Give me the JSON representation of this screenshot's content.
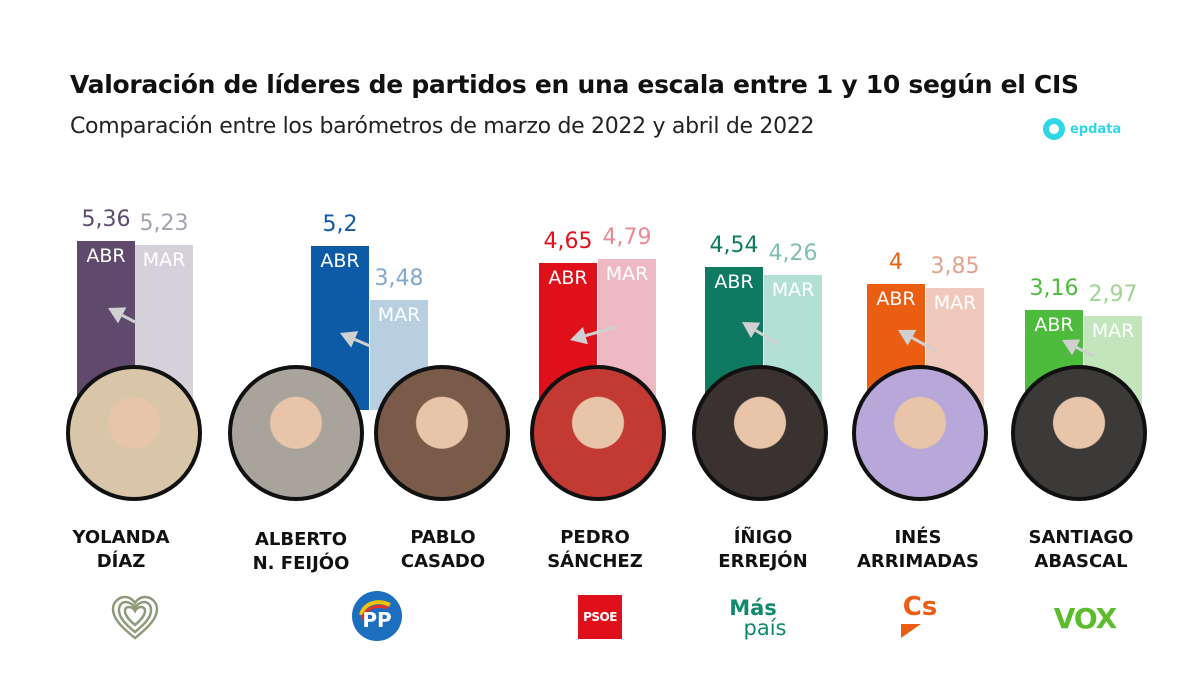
{
  "header": {
    "title": "Valoración de líderes de partidos en una escala entre 1 y 10 según el CIS",
    "subtitle": "Comparación entre los barómetros de marzo de 2022 y abril de 2022",
    "brand": "epdata"
  },
  "chart_data": {
    "type": "bar",
    "title": "Valoración de líderes de partidos en una escala entre 1 y 10 según el CIS",
    "subtitle": "Comparación entre los barómetros de marzo de 2022 y abril de 2022",
    "xlabel": "",
    "ylabel": "",
    "ylim": [
      0,
      10
    ],
    "grid": false,
    "series_labels": {
      "abr": "ABR",
      "mar": "MAR"
    },
    "leaders": [
      {
        "name_line1": "YOLANDA",
        "name_line2": "DÍAZ",
        "party_logo": "Sumar heart",
        "abr": "5,36",
        "abr_value": 5.36,
        "mar": "5,23",
        "mar_value": 5.23,
        "color_abr": "#5f4a6e",
        "color_mar": "#d6d0da",
        "photo_color": "#d9c6a8"
      },
      {
        "name_line1": "ALBERTO",
        "name_line2": "N. FEIJÓO",
        "party_logo": "PP",
        "abr": "5,2",
        "abr_value": 5.2,
        "mar": null,
        "mar_value": null,
        "color_abr": "#0d5aa7",
        "color_mar": "#b8cfe2",
        "photo_color": "#a8a49c"
      },
      {
        "name_line1": "PABLO",
        "name_line2": "CASADO",
        "party_logo": "PP",
        "abr": null,
        "abr_value": null,
        "mar": "3,48",
        "mar_value": 3.48,
        "color_abr": "#0d5aa7",
        "color_mar": "#b8cfe2",
        "photo_color": "#7a5a48"
      },
      {
        "name_line1": "PEDRO",
        "name_line2": "SÁNCHEZ",
        "party_logo": "PSOE",
        "abr": "4,65",
        "abr_value": 4.65,
        "mar": "4,79",
        "mar_value": 4.79,
        "color_abr": "#e0101b",
        "color_mar": "#efb9c3",
        "photo_color": "#c23a32"
      },
      {
        "name_line1": "ÍÑIGO",
        "name_line2": "ERREJÓN",
        "party_logo": "Más país",
        "abr": "4,54",
        "abr_value": 4.54,
        "mar": "4,26",
        "mar_value": 4.26,
        "color_abr": "#0f7a62",
        "color_mar": "#b2e0d4",
        "photo_color": "#3a3230"
      },
      {
        "name_line1": "INÉS",
        "name_line2": "ARRIMADAS",
        "party_logo": "Cs",
        "abr": "4",
        "abr_value": 4.0,
        "mar": "3,85",
        "mar_value": 3.85,
        "color_abr": "#eb5e12",
        "color_mar": "#f0c9bc",
        "photo_color": "#b7a8d9"
      },
      {
        "name_line1": "SANTIAGO",
        "name_line2": "ABASCAL",
        "party_logo": "VOX",
        "abr": "3,16",
        "abr_value": 3.16,
        "mar": "2,97",
        "mar_value": 2.97,
        "color_abr": "#4dbb3b",
        "color_mar": "#c2e5bb",
        "photo_color": "#3c3a38"
      }
    ]
  },
  "party_logos": {
    "sumar": "heart",
    "pp": "PP",
    "psoe": "PSOE",
    "maspais_line1": "Más",
    "maspais_line2": "país",
    "cs": "Cs",
    "vox": "VOX"
  },
  "colors": {
    "pp_blue": "#1c6fbf",
    "psoe_red": "#e0101b",
    "maspais_green": "#0f8a6e",
    "cs_orange": "#eb5e12",
    "vox_green": "#5bbd2b",
    "sumar_green": "#8e9a7a"
  }
}
